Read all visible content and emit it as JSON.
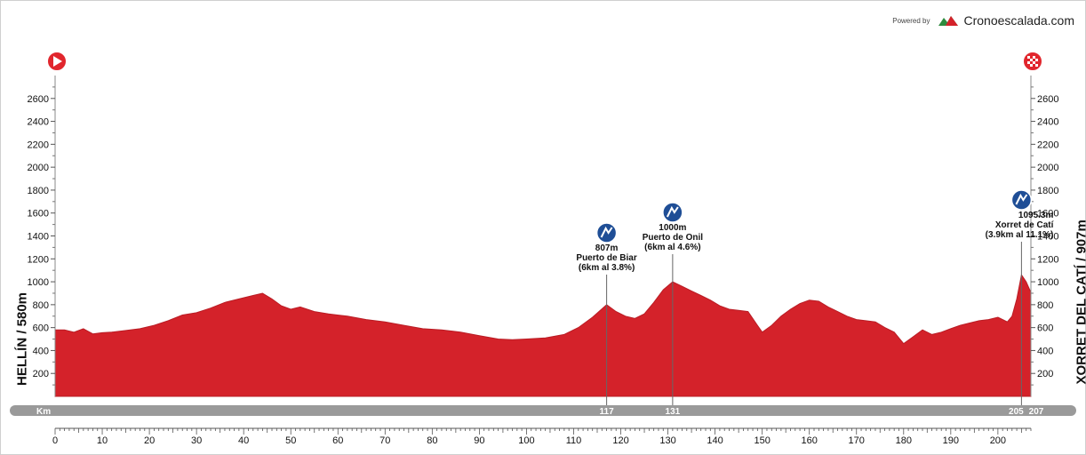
{
  "brand": {
    "powered_by": "Powered by",
    "name": "Cronoescalada.com"
  },
  "start_label": "HELLÍN / 580m",
  "finish_label": "XORRET DEL CATÍ / 907m",
  "colors": {
    "profile": "#d4222a",
    "profile_dark": "#b91c24",
    "km_bar": "#9a9a9a",
    "start_icon": "#e1262d",
    "climb_icon": "#1f4e96",
    "axis": "#555555"
  },
  "icons": {
    "start": "start-play-icon",
    "finish": "finish-checkered-icon",
    "climb_cat": "climb-category-icon",
    "climb_special": "climb-hc-icon"
  },
  "chart_data": {
    "type": "area",
    "xlabel": "Km",
    "ylabel": "",
    "xlim": [
      0,
      207
    ],
    "ylim": [
      0,
      2800
    ],
    "x_ticks": [
      0,
      10,
      20,
      30,
      40,
      50,
      60,
      70,
      80,
      90,
      100,
      110,
      120,
      130,
      140,
      150,
      160,
      170,
      180,
      190,
      200
    ],
    "y_ticks": [
      200,
      400,
      600,
      800,
      1000,
      1200,
      1400,
      1600,
      1800,
      2000,
      2200,
      2400,
      2600
    ],
    "km_markers": [
      "117",
      "131",
      "205",
      "207"
    ],
    "series": [
      {
        "x": [
          0,
          2,
          4,
          6,
          8,
          10,
          12,
          15,
          18,
          21,
          24,
          27,
          30,
          33,
          36,
          39,
          42,
          44,
          46,
          48,
          50,
          52,
          55,
          58,
          62,
          66,
          70,
          74,
          78,
          82,
          86,
          90,
          94,
          97,
          100,
          104,
          108,
          111,
          114,
          117,
          119,
          121,
          123,
          125,
          127,
          129,
          131,
          133,
          135,
          137,
          139,
          141,
          143,
          145,
          147,
          149,
          150,
          152,
          154,
          156,
          158,
          160,
          162,
          164,
          166,
          168,
          170,
          172,
          174,
          176,
          178,
          180,
          182,
          184,
          186,
          188,
          190,
          192,
          194,
          196,
          198,
          200,
          202,
          203,
          204,
          205,
          206,
          207
        ],
        "y": [
          580,
          580,
          560,
          590,
          545,
          555,
          560,
          575,
          590,
          620,
          660,
          710,
          730,
          770,
          820,
          850,
          880,
          900,
          850,
          790,
          760,
          780,
          740,
          720,
          700,
          670,
          650,
          620,
          590,
          580,
          560,
          530,
          500,
          495,
          500,
          510,
          540,
          600,
          690,
          800,
          740,
          700,
          680,
          720,
          820,
          930,
          1000,
          960,
          920,
          880,
          840,
          790,
          760,
          750,
          740,
          620,
          560,
          620,
          700,
          760,
          810,
          840,
          830,
          780,
          740,
          700,
          670,
          660,
          650,
          600,
          560,
          460,
          520,
          580,
          540,
          560,
          590,
          620,
          640,
          660,
          670,
          690,
          650,
          700,
          850,
          1060,
          1000,
          907
        ]
      }
    ],
    "annotations": [
      {
        "km": 117,
        "line1": "807m",
        "line2": "Puerto de Biar",
        "line3": "(6km al 3.8%)"
      },
      {
        "km": 131,
        "line1": "1000m",
        "line2": "Puerto de Onil",
        "line3": "(6km al 4.6%)"
      },
      {
        "km": 205,
        "line1": "1095.3m",
        "line2": "Xorret de Catí",
        "line3": "(3.9km al 11.1%)"
      }
    ]
  }
}
